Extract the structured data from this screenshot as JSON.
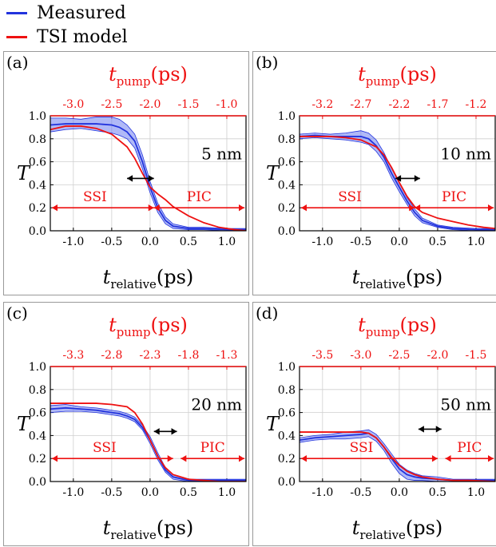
{
  "legend": [
    {
      "name": "Measured",
      "color": "#2233dd"
    },
    {
      "name": "TSI model",
      "color": "#ee1111"
    }
  ],
  "colors": {
    "measured": "#2233dd",
    "measured_band": "#6f7ff0",
    "model": "#ee1111",
    "axis": "#000000",
    "grid": "#cfcfcf"
  },
  "chart_data": [
    {
      "type": "line",
      "panel_label": "(a)",
      "thickness_label": "5 nm",
      "top_axis_label": {
        "base": "t",
        "sub": "pump",
        "unit": "(ps)"
      },
      "top_ticks": [
        "-3.0",
        "-2.5",
        "-2.0",
        "-1.5",
        "-1.0"
      ],
      "xlabel": {
        "base": "t",
        "sub": "relative",
        "unit": "(ps)"
      },
      "ylabel": "T",
      "xlim": [
        -1.3,
        1.25
      ],
      "ylim": [
        0,
        1.0
      ],
      "x_ticks": [
        "-1.0",
        "-0.5",
        "0.0",
        "0.5",
        "1.0"
      ],
      "y_ticks": [
        "0.0",
        "0.2",
        "0.4",
        "0.6",
        "0.8",
        "1.0"
      ],
      "arrow_double_x": [
        -0.3,
        0.05
      ],
      "arrow_double_y": 0.4,
      "ssi": {
        "label": "SSI",
        "range": [
          -1.3,
          0.05
        ]
      },
      "pic": {
        "label": "PIC",
        "range": [
          0.05,
          1.25
        ]
      },
      "series": [
        {
          "name": "Measured",
          "x": [
            -1.3,
            -1.1,
            -0.9,
            -0.7,
            -0.5,
            -0.4,
            -0.3,
            -0.2,
            -0.1,
            0.0,
            0.1,
            0.2,
            0.3,
            0.5,
            0.7,
            1.0,
            1.25
          ],
          "y": [
            0.92,
            0.93,
            0.93,
            0.93,
            0.92,
            0.9,
            0.86,
            0.78,
            0.6,
            0.38,
            0.2,
            0.09,
            0.04,
            0.02,
            0.02,
            0.01,
            0.01
          ],
          "band": [
            0.06,
            0.05,
            0.04,
            0.06,
            0.07,
            0.07,
            0.06,
            0.06,
            0.06,
            0.05,
            0.04,
            0.03,
            0.02,
            0.01,
            0.01,
            0.01,
            0.01
          ]
        },
        {
          "name": "TSI model",
          "x": [
            -1.3,
            -1.1,
            -0.9,
            -0.7,
            -0.5,
            -0.3,
            -0.2,
            -0.1,
            0.0,
            0.1,
            0.2,
            0.3,
            0.5,
            0.7,
            0.9,
            1.1,
            1.25
          ],
          "y": [
            0.88,
            0.91,
            0.91,
            0.89,
            0.84,
            0.73,
            0.63,
            0.5,
            0.38,
            0.32,
            0.27,
            0.21,
            0.13,
            0.07,
            0.03,
            0.01,
            0.0
          ]
        }
      ]
    },
    {
      "type": "line",
      "panel_label": "(b)",
      "thickness_label": "10 nm",
      "top_axis_label": {
        "base": "t",
        "sub": "pump",
        "unit": "(ps)"
      },
      "top_ticks": [
        "-3.2",
        "-2.7",
        "-2.2",
        "-1.7",
        "-1.2"
      ],
      "xlabel": {
        "base": "t",
        "sub": "relative",
        "unit": "(ps)"
      },
      "ylabel": "T",
      "xlim": [
        -1.3,
        1.25
      ],
      "ylim": [
        0,
        1.0
      ],
      "x_ticks": [
        "-1.0",
        "-0.5",
        "0.0",
        "0.5",
        "1.0"
      ],
      "y_ticks": [
        "0.0",
        "0.2",
        "0.4",
        "0.6",
        "0.8",
        "1.0"
      ],
      "arrow_double_x": [
        -0.05,
        0.27
      ],
      "arrow_double_y": 0.4,
      "ssi": {
        "label": "SSI",
        "range": [
          -1.3,
          0.2
        ]
      },
      "pic": {
        "label": "PIC",
        "range": [
          0.2,
          1.25
        ]
      },
      "series": [
        {
          "name": "Measured",
          "x": [
            -1.3,
            -1.1,
            -0.9,
            -0.7,
            -0.5,
            -0.4,
            -0.3,
            -0.2,
            -0.1,
            0.0,
            0.1,
            0.2,
            0.3,
            0.5,
            0.7,
            1.0,
            1.25
          ],
          "y": [
            0.82,
            0.83,
            0.82,
            0.82,
            0.82,
            0.8,
            0.74,
            0.64,
            0.5,
            0.38,
            0.26,
            0.16,
            0.09,
            0.04,
            0.02,
            0.01,
            0.01
          ],
          "band": [
            0.02,
            0.02,
            0.02,
            0.03,
            0.05,
            0.05,
            0.05,
            0.04,
            0.04,
            0.04,
            0.03,
            0.03,
            0.02,
            0.01,
            0.01,
            0.01,
            0.01
          ]
        },
        {
          "name": "TSI model",
          "x": [
            -1.3,
            -1.1,
            -0.9,
            -0.7,
            -0.5,
            -0.3,
            -0.2,
            -0.1,
            0.0,
            0.1,
            0.2,
            0.3,
            0.5,
            0.7,
            0.9,
            1.1,
            1.25
          ],
          "y": [
            0.82,
            0.82,
            0.82,
            0.81,
            0.79,
            0.73,
            0.66,
            0.55,
            0.42,
            0.3,
            0.21,
            0.16,
            0.11,
            0.08,
            0.05,
            0.03,
            0.02
          ]
        }
      ]
    },
    {
      "type": "line",
      "panel_label": "(c)",
      "thickness_label": "20 nm",
      "top_axis_label": {
        "base": "t",
        "sub": "pump",
        "unit": "(ps)"
      },
      "top_ticks": [
        "-3.3",
        "-2.8",
        "-2.3",
        "-1.8",
        "-1.3"
      ],
      "xlabel": {
        "base": "t",
        "sub": "relative",
        "unit": "(ps)"
      },
      "ylabel": "T",
      "xlim": [
        -1.3,
        1.25
      ],
      "ylim": [
        0,
        1.0
      ],
      "x_ticks": [
        "-1.0",
        "-0.5",
        "0.0",
        "0.5",
        "1.0"
      ],
      "y_ticks": [
        "0.0",
        "0.2",
        "0.4",
        "0.6",
        "0.8",
        "1.0"
      ],
      "arrow_double_x": [
        0.05,
        0.35
      ],
      "arrow_double_y": 0.38,
      "ssi": {
        "label": "SSI",
        "range": [
          -1.3,
          0.3
        ]
      },
      "pic": {
        "label": "PIC",
        "range": [
          0.4,
          1.25
        ]
      },
      "series": [
        {
          "name": "Measured",
          "x": [
            -1.3,
            -1.1,
            -0.9,
            -0.7,
            -0.5,
            -0.4,
            -0.3,
            -0.2,
            -0.1,
            0.0,
            0.1,
            0.2,
            0.3,
            0.5,
            0.7,
            1.0,
            1.25
          ],
          "y": [
            0.63,
            0.64,
            0.63,
            0.62,
            0.6,
            0.59,
            0.57,
            0.54,
            0.47,
            0.36,
            0.22,
            0.1,
            0.04,
            0.01,
            0.01,
            0.01,
            0.01
          ],
          "band": [
            0.03,
            0.03,
            0.02,
            0.02,
            0.02,
            0.02,
            0.02,
            0.02,
            0.02,
            0.03,
            0.03,
            0.02,
            0.02,
            0.01,
            0.01,
            0.01,
            0.01
          ]
        },
        {
          "name": "TSI model",
          "x": [
            -1.3,
            -1.1,
            -0.9,
            -0.7,
            -0.5,
            -0.3,
            -0.2,
            -0.1,
            0.0,
            0.1,
            0.2,
            0.3,
            0.5,
            0.7,
            0.9,
            1.1,
            1.25
          ],
          "y": [
            0.68,
            0.68,
            0.68,
            0.68,
            0.67,
            0.65,
            0.6,
            0.5,
            0.36,
            0.22,
            0.12,
            0.06,
            0.02,
            0.01,
            0.0,
            0.0,
            0.0
          ]
        }
      ]
    },
    {
      "type": "line",
      "panel_label": "(d)",
      "thickness_label": "50 nm",
      "top_axis_label": {
        "base": "t",
        "sub": "pump",
        "unit": "(ps)"
      },
      "top_ticks": [
        "-3.5",
        "-3.0",
        "-2.5",
        "-2.0",
        "-1.5"
      ],
      "xlabel": {
        "base": "t",
        "sub": "relative",
        "unit": "(ps)"
      },
      "ylabel": "T",
      "xlim": [
        -1.3,
        1.25
      ],
      "ylim": [
        0,
        1.0
      ],
      "x_ticks": [
        "-1.0",
        "-0.5",
        "0.0",
        "0.5",
        "1.0"
      ],
      "y_ticks": [
        "0.0",
        "0.2",
        "0.4",
        "0.6",
        "0.8",
        "1.0"
      ],
      "arrow_double_x": [
        0.25,
        0.55
      ],
      "arrow_double_y": 0.4,
      "ssi": {
        "label": "SSI",
        "range": [
          -1.3,
          0.5
        ]
      },
      "pic": {
        "label": "PIC",
        "range": [
          0.6,
          1.25
        ]
      },
      "series": [
        {
          "name": "Measured",
          "x": [
            -1.3,
            -1.1,
            -0.9,
            -0.7,
            -0.5,
            -0.4,
            -0.3,
            -0.2,
            -0.1,
            0.0,
            0.1,
            0.2,
            0.3,
            0.5,
            0.7,
            1.0,
            1.25
          ],
          "y": [
            0.36,
            0.38,
            0.39,
            0.4,
            0.41,
            0.42,
            0.38,
            0.3,
            0.2,
            0.11,
            0.06,
            0.04,
            0.03,
            0.02,
            0.01,
            0.01,
            0.01
          ],
          "band": [
            0.02,
            0.02,
            0.02,
            0.03,
            0.03,
            0.03,
            0.03,
            0.03,
            0.04,
            0.04,
            0.04,
            0.03,
            0.02,
            0.02,
            0.01,
            0.01,
            0.01
          ]
        },
        {
          "name": "TSI model",
          "x": [
            -1.3,
            -1.1,
            -0.9,
            -0.7,
            -0.5,
            -0.4,
            -0.3,
            -0.2,
            -0.1,
            0.0,
            0.1,
            0.2,
            0.3,
            0.5,
            0.7,
            0.9,
            1.25
          ],
          "y": [
            0.43,
            0.43,
            0.43,
            0.43,
            0.43,
            0.42,
            0.38,
            0.3,
            0.21,
            0.14,
            0.09,
            0.06,
            0.04,
            0.02,
            0.01,
            0.01,
            0.0
          ]
        }
      ]
    }
  ]
}
